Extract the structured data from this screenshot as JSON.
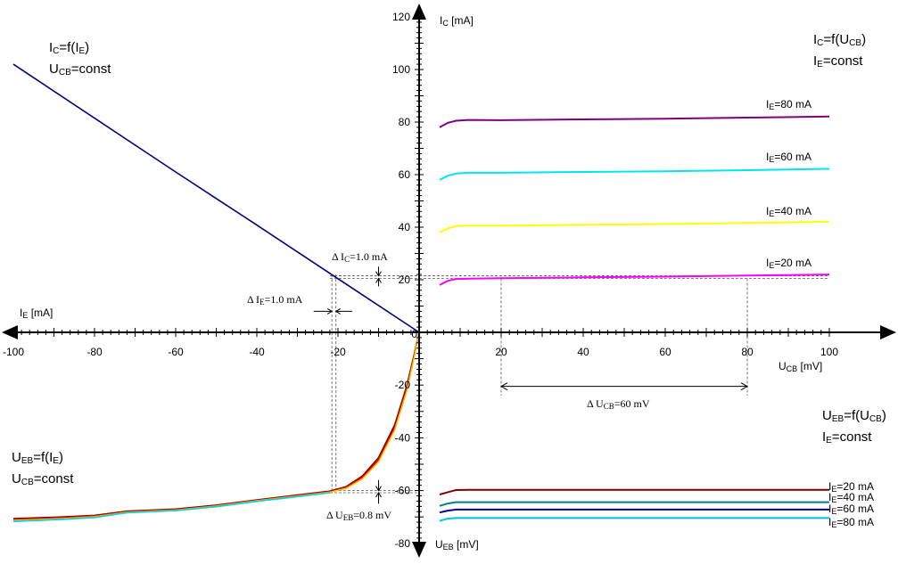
{
  "chart_data": {
    "type": "line",
    "title": "Transistor characteristics in common-base configuration (four quadrants)",
    "axes": {
      "x_right": {
        "label_main": "U",
        "label_sub": "CB",
        "label_unit": " [mV]",
        "range": [
          0,
          100
        ],
        "ticks": [
          20,
          40,
          60,
          80,
          100
        ]
      },
      "x_left": {
        "label_main": "I",
        "label_sub": "E",
        "label_unit": " [mA]",
        "range": [
          -100,
          0
        ],
        "ticks": [
          -100,
          -80,
          -60,
          -40,
          -20
        ]
      },
      "y_up": {
        "label_main": "I",
        "label_sub": "C",
        "label_unit": " [mA]",
        "range": [
          0,
          120
        ],
        "ticks": [
          20,
          40,
          60,
          80,
          100,
          120
        ]
      },
      "y_down": {
        "label_main": "U",
        "label_sub": "EB",
        "label_unit": " [mV]",
        "range": [
          -80,
          0
        ],
        "ticks": [
          -20,
          -40,
          -60,
          -80
        ]
      },
      "origin_label": "0"
    },
    "quadrants": {
      "output": {
        "title_line1": {
          "main": "I",
          "sub": "C",
          "rest": "=f(U",
          "sub2": "CB",
          "end": ")"
        },
        "title_line2": {
          "main": "I",
          "sub": "E",
          "rest": "=const"
        },
        "series": [
          {
            "name": "I_E=80 mA",
            "label_main": "I",
            "label_sub": "E",
            "label_rest": "=80 mA",
            "color": "#800080",
            "x": [
              5,
              7,
              9,
              12,
              20,
              40,
              60,
              80,
              100
            ],
            "y": [
              78,
              79.7,
              80.5,
              80.8,
              80.7,
              81.0,
              81.3,
              81.7,
              82.1
            ]
          },
          {
            "name": "I_E=60 mA",
            "label_main": "I",
            "label_sub": "E",
            "label_rest": "=60 mA",
            "color": "#00e5ee",
            "x": [
              5,
              7,
              9,
              12,
              20,
              40,
              60,
              80,
              100
            ],
            "y": [
              58,
              59.6,
              60.4,
              60.7,
              60.7,
              61.0,
              61.3,
              61.7,
              62.2
            ]
          },
          {
            "name": "I_E=40 mA",
            "label_main": "I",
            "label_sub": "E",
            "label_rest": "=40 mA",
            "color": "#ffff00",
            "x": [
              5,
              7,
              9,
              12,
              20,
              40,
              60,
              80,
              100
            ],
            "y": [
              38,
              39.6,
              40.4,
              40.6,
              40.6,
              40.9,
              41.2,
              41.6,
              42.1
            ]
          },
          {
            "name": "I_E=20 mA",
            "label_main": "I",
            "label_sub": "E",
            "label_rest": "=20 mA",
            "color": "#ff00ff",
            "x": [
              5,
              7,
              9,
              12,
              20,
              40,
              60,
              80,
              100
            ],
            "y": [
              18,
              19.6,
              20.3,
              20.4,
              20.6,
              20.9,
              21.2,
              21.6,
              22.0
            ]
          }
        ]
      },
      "transfer": {
        "title_line1": {
          "main": "I",
          "sub": "C",
          "rest": "=f(I",
          "sub2": "E",
          "end": ")"
        },
        "title_line2": {
          "main": "U",
          "sub": "CB",
          "rest": "=const"
        },
        "series": [
          {
            "name": "I_C=f(I_E)",
            "color": "#000080",
            "x": [
              -100,
              -80,
              -60,
              -40,
              -20,
              0
            ],
            "y": [
              102,
              81.5,
              61,
              40.8,
              20.4,
              0
            ]
          }
        ]
      },
      "input": {
        "title_line1": {
          "main": "U",
          "sub": "EB",
          "rest": "=f(I",
          "sub2": "E",
          "end": ")"
        },
        "title_line2": {
          "main": "U",
          "sub": "CB",
          "rest": "=const"
        },
        "series": [
          {
            "name": "U_CB=const (dark red)",
            "color": "#800000",
            "x": [
              -100,
              -88,
              -80,
              -72,
              -60,
              -50,
              -40,
              -30,
              -22,
              -18,
              -14,
              -10,
              -6,
              -3,
              -1,
              0
            ],
            "y": [
              -70.6,
              -70.0,
              -69.4,
              -67.8,
              -67.0,
              -65.5,
              -63.5,
              -61.7,
              -60.2,
              -58.5,
              -54.5,
              -47.5,
              -35,
              -20,
              -7,
              0
            ]
          },
          {
            "name": "U_CB=const (red)",
            "color": "#dd0000",
            "x": [
              -100,
              -88,
              -80,
              -72,
              -60,
              -50,
              -40,
              -30,
              -22,
              -18,
              -14,
              -10,
              -6,
              -3,
              -1,
              0
            ],
            "y": [
              -70.9,
              -70.3,
              -69.6,
              -68.0,
              -67.2,
              -65.7,
              -63.7,
              -61.9,
              -60.4,
              -58.8,
              -55.0,
              -48.3,
              -36,
              -21,
              -7.5,
              0
            ]
          },
          {
            "name": "U_CB=const (yellow)",
            "color": "#f0c800",
            "x": [
              -100,
              -88,
              -80,
              -72,
              -60,
              -50,
              -40,
              -30,
              -22,
              -18,
              -14,
              -10,
              -6,
              -3,
              -1,
              0
            ],
            "y": [
              -71.3,
              -70.6,
              -69.9,
              -68.2,
              -67.4,
              -65.9,
              -63.9,
              -62.1,
              -60.6,
              -59.2,
              -55.6,
              -49.2,
              -37,
              -22,
              -8,
              0
            ]
          },
          {
            "name": "U_CB=const (cyan)",
            "color": "#00d0e0",
            "x": [
              -100,
              -88,
              -80,
              -72,
              -60,
              -50,
              -40,
              -30,
              -22
            ],
            "y": [
              -71.7,
              -70.9,
              -70.2,
              -68.4,
              -67.6,
              -66.1,
              -64.1,
              -62.3,
              -60.8
            ]
          }
        ]
      },
      "feedback": {
        "title_line1": {
          "main": "U",
          "sub": "EB",
          "rest": "=f(U",
          "sub2": "CB",
          "end": ")"
        },
        "title_line2": {
          "main": "I",
          "sub": "E",
          "rest": "=const"
        },
        "series": [
          {
            "name": "I_E=20 mA",
            "label_main": "I",
            "label_sub": "E",
            "label_rest": "=20 mA",
            "color": "#800000",
            "x": [
              5,
              7,
              9,
              12,
              20,
              40,
              60,
              80,
              100
            ],
            "y": [
              -61.5,
              -60.6,
              -59.8,
              -59.7,
              -59.7,
              -59.7,
              -59.7,
              -59.7,
              -59.7
            ]
          },
          {
            "name": "I_E=40 mA",
            "label_main": "I",
            "label_sub": "E",
            "label_rest": "=40 mA",
            "color": "#008080",
            "x": [
              5,
              7,
              9,
              12,
              20,
              40,
              60,
              80,
              100
            ],
            "y": [
              -65.8,
              -64.9,
              -64.4,
              -64.4,
              -64.4,
              -64.4,
              -64.4,
              -64.4,
              -64.4
            ]
          },
          {
            "name": "I_E=60 mA",
            "label_main": "I",
            "label_sub": "E",
            "label_rest": "=60 mA",
            "color": "#0000a0",
            "x": [
              5,
              7,
              9,
              12,
              20,
              40,
              60,
              80,
              100
            ],
            "y": [
              -68.3,
              -67.6,
              -67.2,
              -67.2,
              -67.2,
              -67.2,
              -67.2,
              -67.2,
              -67.2
            ]
          },
          {
            "name": "I_E=80 mA",
            "label_main": "I",
            "label_sub": "E",
            "label_rest": "=80 mA",
            "color": "#00c0e8",
            "x": [
              5,
              7,
              9,
              12,
              20,
              40,
              60,
              80,
              100
            ],
            "y": [
              -71.5,
              -70.6,
              -70.4,
              -70.4,
              -70.4,
              -70.4,
              -70.4,
              -70.4,
              -70.4
            ]
          }
        ]
      }
    },
    "annotations": [
      {
        "name": "delta-ic",
        "text_main": "Δ I",
        "text_sub": "C",
        "text_rest": "=1.0 mA"
      },
      {
        "name": "delta-ie",
        "text_main": "Δ I",
        "text_sub": "E",
        "text_rest": "=1.0 mA"
      },
      {
        "name": "delta-ucb",
        "text_main": "Δ U",
        "text_sub": "CB",
        "text_rest": "=60 mV"
      },
      {
        "name": "delta-ueb",
        "text_main": "Δ U",
        "text_sub": "EB",
        "text_rest": "=0.8 mV"
      }
    ],
    "markers": {
      "ic_lines": [
        20.5,
        21.5
      ],
      "ie_lines": [
        -21.5,
        -20.5
      ],
      "ucb_lines": [
        20,
        80
      ],
      "ueb_lines": [
        -60,
        -60.8
      ]
    },
    "grid": false
  }
}
